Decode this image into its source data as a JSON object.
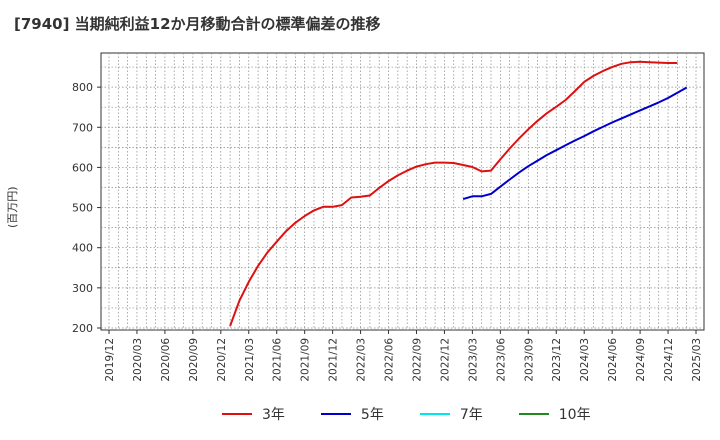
{
  "chart_data": {
    "type": "line",
    "title": "[7940]  当期純利益12か月移動合計の標準偏差の推移",
    "ylabel": "(百万円)",
    "xlabel": "",
    "ylim": [
      195,
      885
    ],
    "yticks": [
      200,
      300,
      400,
      500,
      600,
      700,
      800
    ],
    "x_tick_labels": [
      "2019/12",
      "2020/03",
      "2020/06",
      "2020/09",
      "2020/12",
      "2021/03",
      "2021/06",
      "2021/09",
      "2021/12",
      "2022/03",
      "2022/06",
      "2022/09",
      "2022/12",
      "2023/03",
      "2023/06",
      "2023/09",
      "2023/12",
      "2024/03",
      "2024/06",
      "2024/09",
      "2024/12",
      "2025/03"
    ],
    "grid": true,
    "legend": "bottom",
    "series": [
      {
        "name": "3年",
        "color": "#dd1111",
        "points": [
          [
            "2021/01",
            205
          ],
          [
            "2021/02",
            268
          ],
          [
            "2021/03",
            315
          ],
          [
            "2021/04",
            355
          ],
          [
            "2021/05",
            388
          ],
          [
            "2021/06",
            415
          ],
          [
            "2021/07",
            441
          ],
          [
            "2021/08",
            462
          ],
          [
            "2021/09",
            479
          ],
          [
            "2021/10",
            493
          ],
          [
            "2021/11",
            502
          ],
          [
            "2021/12",
            502
          ],
          [
            "2022/01",
            506
          ],
          [
            "2022/02",
            525
          ],
          [
            "2022/03",
            527
          ],
          [
            "2022/04",
            530
          ],
          [
            "2022/05",
            549
          ],
          [
            "2022/06",
            566
          ],
          [
            "2022/07",
            580
          ],
          [
            "2022/08",
            592
          ],
          [
            "2022/09",
            602
          ],
          [
            "2022/10",
            608
          ],
          [
            "2022/11",
            612
          ],
          [
            "2022/12",
            612
          ],
          [
            "2023/01",
            611
          ],
          [
            "2023/02",
            606
          ],
          [
            "2023/03",
            601
          ],
          [
            "2023/04",
            590
          ],
          [
            "2023/05",
            592
          ],
          [
            "2023/06",
            620
          ],
          [
            "2023/07",
            647
          ],
          [
            "2023/08",
            672
          ],
          [
            "2023/09",
            695
          ],
          [
            "2023/10",
            716
          ],
          [
            "2023/11",
            735
          ],
          [
            "2023/12",
            751
          ],
          [
            "2024/01",
            768
          ],
          [
            "2024/02",
            790
          ],
          [
            "2024/03",
            813
          ],
          [
            "2024/04",
            828
          ],
          [
            "2024/05",
            840
          ],
          [
            "2024/06",
            850
          ],
          [
            "2024/07",
            858
          ],
          [
            "2024/08",
            862
          ],
          [
            "2024/09",
            863
          ],
          [
            "2024/10",
            862
          ],
          [
            "2024/11",
            861
          ],
          [
            "2024/12",
            860
          ],
          [
            "2025/01",
            860
          ]
        ]
      },
      {
        "name": "5年",
        "color": "#0000cc",
        "points": [
          [
            "2023/02",
            521
          ],
          [
            "2023/03",
            528
          ],
          [
            "2023/04",
            528
          ],
          [
            "2023/05",
            534
          ],
          [
            "2023/06",
            552
          ],
          [
            "2023/07",
            570
          ],
          [
            "2023/08",
            587
          ],
          [
            "2023/09",
            603
          ],
          [
            "2023/10",
            617
          ],
          [
            "2023/11",
            631
          ],
          [
            "2023/12",
            643
          ],
          [
            "2024/01",
            655
          ],
          [
            "2024/02",
            667
          ],
          [
            "2024/03",
            678
          ],
          [
            "2024/04",
            690
          ],
          [
            "2024/05",
            701
          ],
          [
            "2024/06",
            712
          ],
          [
            "2024/07",
            722
          ],
          [
            "2024/08",
            732
          ],
          [
            "2024/09",
            742
          ],
          [
            "2024/10",
            752
          ],
          [
            "2024/11",
            762
          ],
          [
            "2024/12",
            773
          ],
          [
            "2025/01",
            786
          ],
          [
            "2025/02",
            799
          ]
        ]
      },
      {
        "name": "7年",
        "color": "#00e5ee",
        "points": []
      },
      {
        "name": "10年",
        "color": "#228822",
        "points": []
      }
    ]
  }
}
